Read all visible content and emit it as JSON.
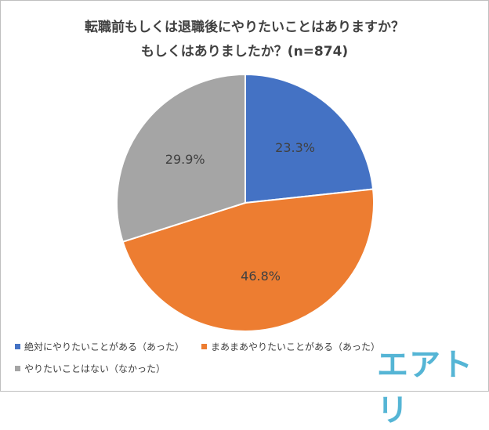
{
  "chart_data": {
    "type": "pie",
    "title": "転職前もしくは退職後にやりたいことはありますか？",
    "subtitle": "もしくはありましたか？(n=874)",
    "categories": [
      "絶対にやりたいことがある（あった）",
      "まあまあやりたいことがある（あった）",
      "やりたいことはない（なかった）"
    ],
    "values": [
      23.3,
      46.8,
      29.9
    ],
    "value_labels": [
      "23.3%",
      "46.8%",
      "29.9%"
    ],
    "colors": [
      "#4472C4",
      "#ED7D31",
      "#A5A5A5"
    ],
    "legend_position": "bottom-left"
  },
  "logo": {
    "text": "エアトリ",
    "color": "#55b5d5"
  }
}
